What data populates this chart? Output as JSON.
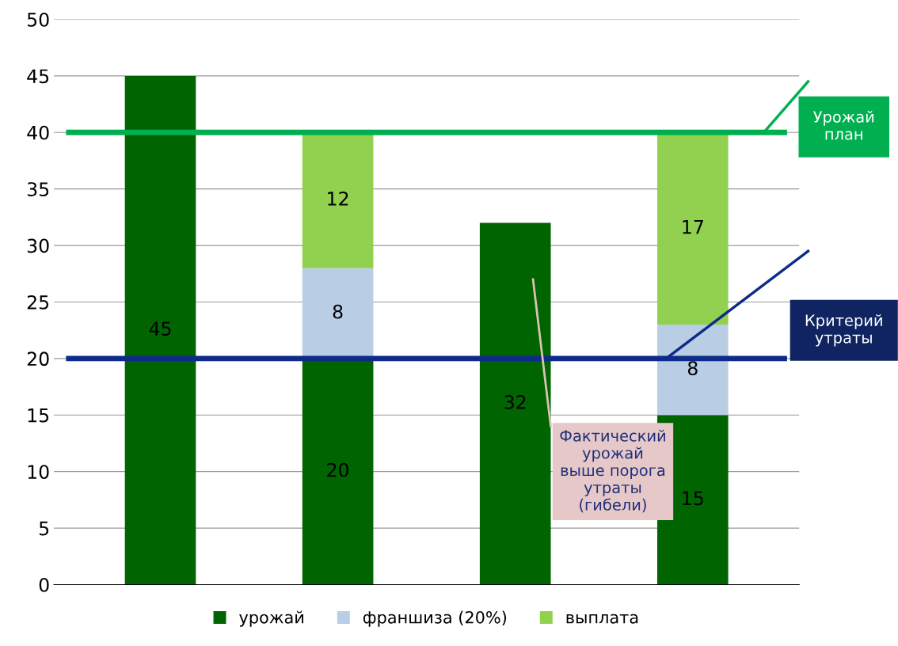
{
  "chart_data": {
    "type": "bar",
    "stacked": true,
    "categories": [
      null,
      null,
      null,
      null
    ],
    "series": [
      {
        "name": "урожай",
        "color": "#006400",
        "values": [
          45,
          20,
          32,
          15
        ]
      },
      {
        "name": "франшиза (20%)",
        "color": "#b9cde5",
        "values": [
          null,
          8,
          null,
          8
        ]
      },
      {
        "name": "выплата",
        "color": "#92d050",
        "values": [
          null,
          12,
          null,
          17
        ]
      }
    ],
    "data_labels": true,
    "ylim": [
      0,
      50
    ],
    "yticks": [
      0,
      5,
      10,
      15,
      20,
      25,
      30,
      35,
      40,
      45,
      50
    ],
    "grid": "y",
    "legend": "bottom",
    "ref_lines": [
      {
        "axis": "y",
        "value": 40,
        "label": "Урожай план",
        "color": "#00b050"
      },
      {
        "axis": "y",
        "value": 20,
        "label": "Критерий утраты",
        "color": "#0e2a8a"
      }
    ],
    "annotations": [
      "Фактический урожай выше порога утраты (гибели)"
    ]
  }
}
